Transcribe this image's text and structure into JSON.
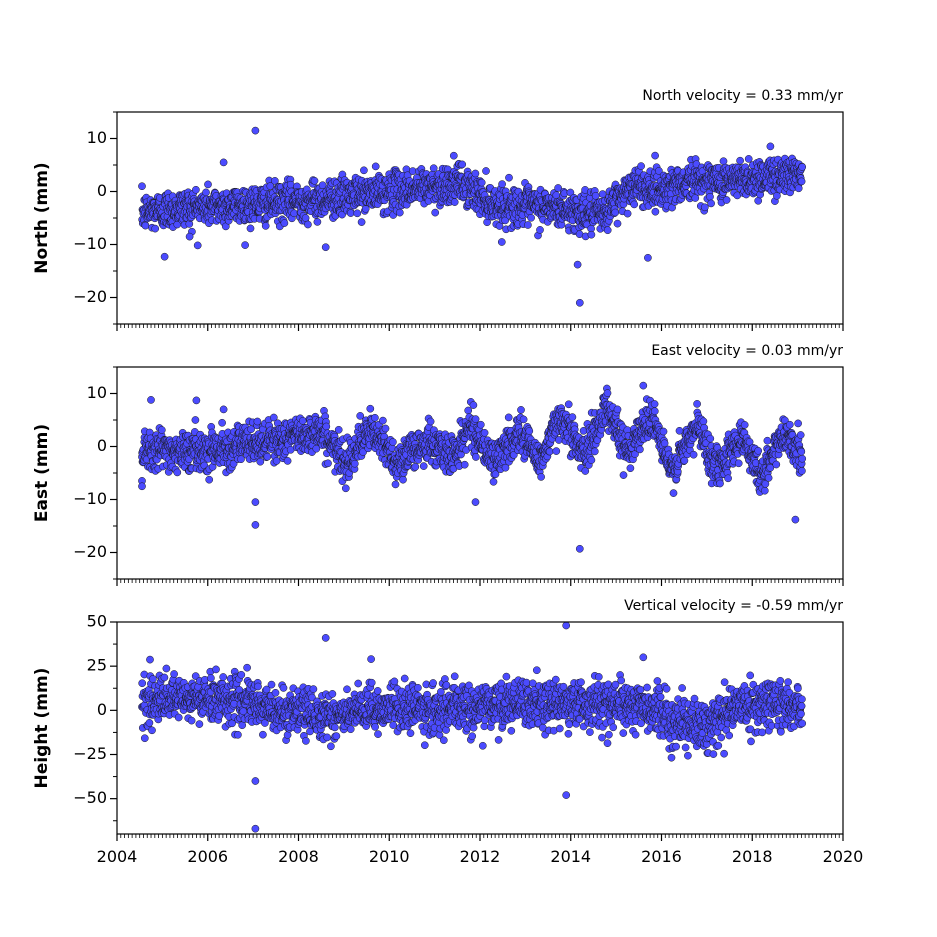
{
  "chart_data": [
    {
      "type": "scatter",
      "title": "North velocity = 0.33 mm/yr",
      "ylabel": "North (mm)",
      "xlim": [
        2004,
        2020
      ],
      "ylim": [
        -25,
        15
      ],
      "yticks": [
        -20,
        -10,
        0,
        10
      ],
      "x_ticks_labeled": false,
      "marker_color": "#4b4bff",
      "marker_edge": "#1a1a1a",
      "series": [
        {
          "trend": [
            [
              2004.55,
              -4
            ],
            [
              2005.5,
              -3
            ],
            [
              2007.0,
              -2.5
            ],
            [
              2008.5,
              -1.5
            ],
            [
              2009.5,
              -0.5
            ],
            [
              2010.5,
              0.5
            ],
            [
              2011.6,
              1.5
            ],
            [
              2012.3,
              -2.5
            ],
            [
              2013.5,
              -3
            ],
            [
              2014.7,
              -4.5
            ],
            [
              2015.3,
              1
            ],
            [
              2016.0,
              0.5
            ],
            [
              2016.6,
              2
            ],
            [
              2017.5,
              2
            ],
            [
              2018.5,
              3
            ],
            [
              2019.1,
              3.5
            ]
          ],
          "scatter_sd": 1.8,
          "outliers": [
            {
              "x": 2007.05,
              "y": 11.5
            },
            {
              "x": 2006.35,
              "y": 5.5
            },
            {
              "x": 2005.05,
              "y": -12.3
            },
            {
              "x": 2005.6,
              "y": -8.5
            },
            {
              "x": 2008.6,
              "y": -10.5
            },
            {
              "x": 2014.15,
              "y": -13.8
            },
            {
              "x": 2014.2,
              "y": -21
            },
            {
              "x": 2015.7,
              "y": -12.5
            },
            {
              "x": 2018.4,
              "y": 8.5
            }
          ]
        }
      ]
    },
    {
      "type": "scatter",
      "title": "East velocity = 0.03 mm/yr",
      "ylabel": "East (mm)",
      "xlim": [
        2004,
        2020
      ],
      "ylim": [
        -25,
        15
      ],
      "yticks": [
        -20,
        -10,
        0,
        10
      ],
      "x_ticks_labeled": false,
      "marker_color": "#4b4bff",
      "marker_edge": "#1a1a1a",
      "series": [
        {
          "trend": [
            [
              2004.55,
              0
            ],
            [
              2005.5,
              -1
            ],
            [
              2006.5,
              0
            ],
            [
              2007.5,
              1
            ],
            [
              2008.5,
              3
            ],
            [
              2009.0,
              -3
            ],
            [
              2009.6,
              3
            ],
            [
              2010.2,
              -3
            ],
            [
              2010.8,
              1
            ],
            [
              2011.4,
              -2
            ],
            [
              2011.8,
              4
            ],
            [
              2012.3,
              -3
            ],
            [
              2012.9,
              3
            ],
            [
              2013.3,
              -3
            ],
            [
              2013.8,
              6
            ],
            [
              2014.3,
              -2
            ],
            [
              2014.8,
              8
            ],
            [
              2015.2,
              -1
            ],
            [
              2015.8,
              6
            ],
            [
              2016.2,
              -5
            ],
            [
              2016.8,
              4
            ],
            [
              2017.2,
              -4
            ],
            [
              2017.8,
              2
            ],
            [
              2018.2,
              -6
            ],
            [
              2018.7,
              3
            ],
            [
              2019.1,
              -2
            ]
          ],
          "scatter_sd": 1.8,
          "outliers": [
            {
              "x": 2004.55,
              "y": -6.5
            },
            {
              "x": 2004.55,
              "y": -7.5
            },
            {
              "x": 2004.75,
              "y": 8.8
            },
            {
              "x": 2005.75,
              "y": 8.7
            },
            {
              "x": 2006.35,
              "y": 7
            },
            {
              "x": 2007.05,
              "y": -10.5
            },
            {
              "x": 2007.05,
              "y": -14.8
            },
            {
              "x": 2011.9,
              "y": -10.5
            },
            {
              "x": 2014.2,
              "y": -19.3
            },
            {
              "x": 2015.6,
              "y": 11.5
            },
            {
              "x": 2018.95,
              "y": -13.8
            }
          ]
        }
      ]
    },
    {
      "type": "scatter",
      "title": "Vertical velocity = -0.59 mm/yr",
      "ylabel": "Height (mm)",
      "xlim": [
        2004,
        2020
      ],
      "ylim": [
        -70,
        50
      ],
      "yticks": [
        -50,
        -25,
        0,
        25,
        50
      ],
      "x_ticks_labeled": true,
      "xticks": [
        2004,
        2006,
        2008,
        2010,
        2012,
        2014,
        2016,
        2018,
        2020
      ],
      "marker_color": "#4b4bff",
      "marker_edge": "#1a1a1a",
      "series": [
        {
          "trend": [
            [
              2004.55,
              5
            ],
            [
              2006.5,
              7
            ],
            [
              2007.5,
              0
            ],
            [
              2009.0,
              -3
            ],
            [
              2010.0,
              2
            ],
            [
              2011.0,
              0
            ],
            [
              2012.5,
              3
            ],
            [
              2014.5,
              4
            ],
            [
              2015.5,
              3
            ],
            [
              2016.3,
              -6
            ],
            [
              2017.0,
              -10
            ],
            [
              2017.5,
              1
            ],
            [
              2018.5,
              5
            ],
            [
              2019.1,
              0
            ]
          ],
          "scatter_sd": 6.5,
          "outliers": [
            {
              "x": 2007.05,
              "y": -40
            },
            {
              "x": 2007.05,
              "y": -67
            },
            {
              "x": 2008.6,
              "y": 41
            },
            {
              "x": 2013.9,
              "y": 48
            },
            {
              "x": 2013.9,
              "y": -48
            },
            {
              "x": 2009.6,
              "y": 29
            },
            {
              "x": 2015.6,
              "y": 30
            }
          ]
        }
      ]
    }
  ]
}
